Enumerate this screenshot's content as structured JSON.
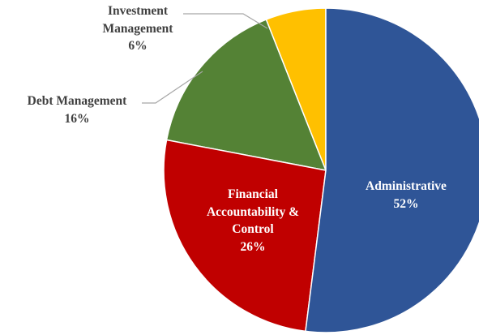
{
  "chart_data": {
    "type": "pie",
    "categories": [
      "Administrative",
      "Financial Accountability & Control",
      "Debt Management",
      "Investment Management"
    ],
    "values": [
      52,
      26,
      16,
      6
    ],
    "value_labels": [
      "52%",
      "26%",
      "16%",
      "6%"
    ],
    "colors": [
      "#2f5597",
      "#c00000",
      "#548235",
      "#ffc000"
    ]
  }
}
